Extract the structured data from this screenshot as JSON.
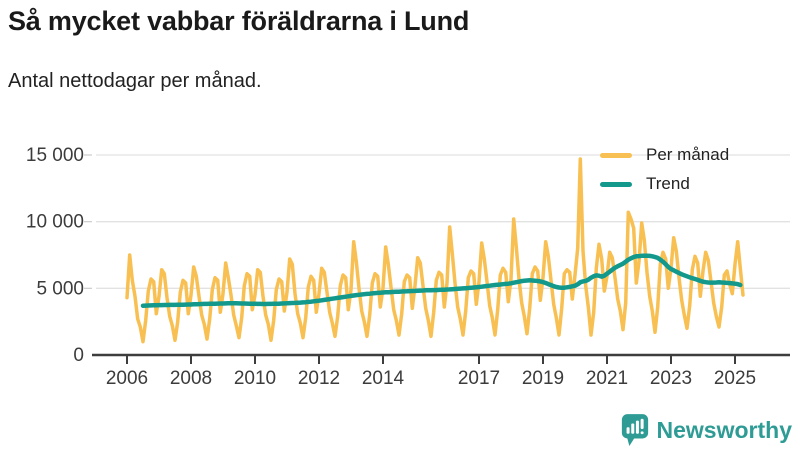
{
  "header": {
    "title": "Så mycket vabbar föräldrarna i Lund",
    "subtitle": "Antal nettodagar per månad."
  },
  "legend": {
    "per_month_label": "Per månad",
    "trend_label": "Trend"
  },
  "footer": {
    "brand": "Newsworthy",
    "brand_color": "#2E9C95"
  },
  "colors": {
    "per_month": "#F8C052",
    "trend": "#12998C",
    "grid": "#e2e2e2",
    "axis": "#3d3d3d",
    "tick_text": "#3c3c3c"
  },
  "chart_data": {
    "type": "line",
    "title": "Så mycket vabbar föräldrarna i Lund",
    "ylabel": "Antal nettodagar per månad",
    "xlabel": "",
    "x_start": "2006-01",
    "x_end": "2025-04",
    "x_unit": "month",
    "ylim": [
      0,
      15000
    ],
    "grid": "horizontal",
    "legend_position": "top-right",
    "yticks": [
      0,
      5000,
      10000,
      15000
    ],
    "ytick_labels": [
      "0",
      "5 000",
      "10 000",
      "15 000"
    ],
    "xtick_years": [
      2006,
      2008,
      2010,
      2012,
      2014,
      2017,
      2019,
      2021,
      2023,
      2025
    ],
    "series": [
      {
        "name": "Per månad",
        "color": "#F8C052",
        "values": [
          4300,
          7500,
          5600,
          4400,
          2700,
          2100,
          1000,
          2600,
          4800,
          5700,
          5500,
          3100,
          4400,
          6400,
          6100,
          4300,
          2900,
          2200,
          1100,
          2500,
          4700,
          5600,
          5400,
          3100,
          4500,
          6600,
          5900,
          4400,
          3000,
          2300,
          1200,
          2700,
          4900,
          5800,
          5600,
          3200,
          4600,
          6900,
          5800,
          4500,
          3000,
          2200,
          1300,
          2800,
          5200,
          6100,
          5900,
          3400,
          4500,
          6400,
          6200,
          4400,
          3000,
          2300,
          1100,
          2600,
          4900,
          5700,
          5500,
          3300,
          4700,
          7200,
          6800,
          4600,
          3100,
          2400,
          1300,
          2800,
          5100,
          5900,
          5600,
          3200,
          4600,
          6500,
          6200,
          4700,
          3200,
          2400,
          1400,
          2900,
          5200,
          6000,
          5800,
          3400,
          4900,
          8500,
          7000,
          5000,
          3300,
          2500,
          1400,
          3000,
          5400,
          6100,
          5900,
          3600,
          5000,
          8100,
          6800,
          5100,
          3400,
          2600,
          1500,
          3100,
          5500,
          6000,
          5800,
          3500,
          5200,
          7300,
          6900,
          5200,
          3500,
          2600,
          1400,
          3200,
          5600,
          6200,
          6000,
          3600,
          5400,
          9600,
          7600,
          5400,
          3600,
          2700,
          1500,
          3300,
          5800,
          6300,
          6100,
          3800,
          5500,
          8400,
          7200,
          5500,
          3700,
          2800,
          1500,
          3400,
          6000,
          6500,
          6200,
          4000,
          5700,
          10200,
          8100,
          5700,
          3900,
          2900,
          1600,
          3500,
          6100,
          6600,
          6300,
          4100,
          5800,
          8500,
          7400,
          5600,
          3800,
          2800,
          1500,
          3500,
          6100,
          6400,
          6200,
          4200,
          6000,
          8000,
          14700,
          7800,
          5200,
          3600,
          1500,
          3200,
          6500,
          8300,
          7200,
          4800,
          5900,
          7700,
          7300,
          5800,
          4200,
          3300,
          1900,
          3900,
          10700,
          10200,
          9500,
          5400,
          7000,
          9900,
          8600,
          6200,
          4400,
          3300,
          1700,
          3600,
          6800,
          7700,
          7200,
          5000,
          6500,
          8800,
          7800,
          5800,
          4100,
          3000,
          2000,
          3700,
          6400,
          7400,
          6900,
          4400,
          6300,
          7700,
          7100,
          5500,
          3900,
          2900,
          2100,
          3600,
          6000,
          6300,
          5300,
          4600,
          6800,
          8500,
          6500,
          4500
        ]
      },
      {
        "name": "Trend",
        "color": "#12998C",
        "values": [
          null,
          null,
          null,
          null,
          null,
          null,
          3700,
          3705,
          3710,
          3720,
          3730,
          3735,
          3740,
          3745,
          3750,
          3750,
          3755,
          3760,
          3760,
          3765,
          3770,
          3775,
          3780,
          3785,
          3790,
          3800,
          3810,
          3820,
          3825,
          3830,
          3835,
          3840,
          3845,
          3850,
          3855,
          3860,
          3865,
          3870,
          3875,
          3880,
          3880,
          3875,
          3870,
          3865,
          3860,
          3855,
          3850,
          3845,
          3840,
          3835,
          3830,
          3825,
          3825,
          3830,
          3835,
          3840,
          3845,
          3850,
          3860,
          3870,
          3880,
          3890,
          3900,
          3910,
          3920,
          3930,
          3945,
          3960,
          3980,
          4000,
          4025,
          4050,
          4075,
          4100,
          4130,
          4160,
          4190,
          4220,
          4250,
          4280,
          4310,
          4340,
          4370,
          4400,
          4430,
          4460,
          4490,
          4515,
          4540,
          4560,
          4580,
          4600,
          4620,
          4640,
          4655,
          4670,
          4685,
          4700,
          4710,
          4720,
          4730,
          4740,
          4750,
          4760,
          4770,
          4780,
          4790,
          4800,
          4810,
          4820,
          4830,
          4840,
          4850,
          4855,
          4860,
          4865,
          4870,
          4880,
          4890,
          4900,
          4910,
          4920,
          4935,
          4950,
          4965,
          4980,
          4995,
          5010,
          5025,
          5040,
          5060,
          5080,
          5100,
          5125,
          5150,
          5175,
          5200,
          5225,
          5250,
          5270,
          5290,
          5310,
          5330,
          5350,
          5380,
          5420,
          5460,
          5500,
          5540,
          5570,
          5590,
          5600,
          5590,
          5570,
          5550,
          5520,
          5470,
          5400,
          5320,
          5240,
          5160,
          5100,
          5060,
          5040,
          5050,
          5080,
          5110,
          5150,
          5200,
          5300,
          5450,
          5520,
          5560,
          5650,
          5800,
          5900,
          5970,
          5950,
          5880,
          5950,
          6100,
          6250,
          6400,
          6550,
          6650,
          6750,
          6850,
          7000,
          7150,
          7250,
          7350,
          7400,
          7420,
          7440,
          7450,
          7440,
          7430,
          7400,
          7350,
          7280,
          7150,
          7000,
          6800,
          6600,
          6450,
          6350,
          6250,
          6150,
          6050,
          5980,
          5900,
          5830,
          5760,
          5700,
          5630,
          5560,
          5500,
          5460,
          5440,
          5430,
          5430,
          5440,
          5450,
          5440,
          5430,
          5410,
          5390,
          5370,
          5350,
          5320,
          5250,
          null
        ]
      }
    ]
  }
}
